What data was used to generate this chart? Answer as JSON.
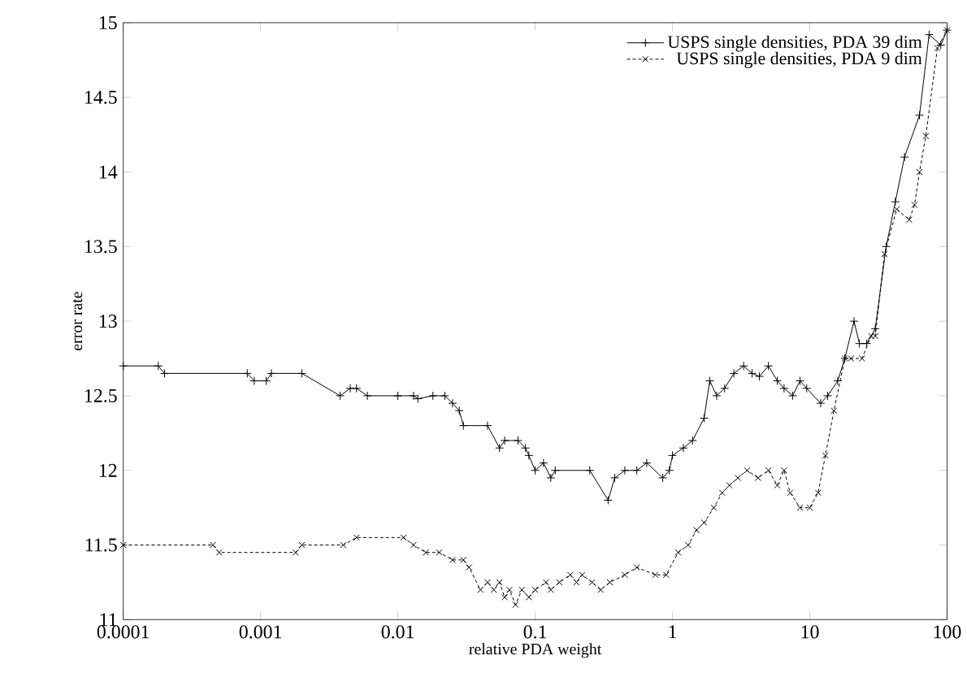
{
  "chart_data": {
    "type": "line",
    "xlabel": "relative PDA weight",
    "ylabel": "error rate",
    "log": "x",
    "xlim": [
      0.0001,
      100
    ],
    "xticks": [
      {
        "value": 0.0001,
        "label": "0.0001"
      },
      {
        "value": 0.001,
        "label": "0.001"
      },
      {
        "value": 0.01,
        "label": "0.01"
      },
      {
        "value": 0.1,
        "label": "0.1"
      },
      {
        "value": 1,
        "label": "1"
      },
      {
        "value": 10,
        "label": "10"
      },
      {
        "value": 100,
        "label": "100"
      }
    ],
    "ylim": [
      11,
      15
    ],
    "yticks": [
      11,
      11.5,
      12,
      12.5,
      13,
      13.5,
      14,
      14.5,
      15
    ],
    "grid": false,
    "legend": "top right",
    "series": [
      {
        "name": "USPS single densities, PDA 39 dim",
        "color": "#000000",
        "marker": "plus",
        "line_style": "solid",
        "x": [
          0.0001,
          0.00018,
          0.0002,
          0.0008,
          0.0009,
          0.0011,
          0.0012,
          0.002,
          0.0038,
          0.0045,
          0.005,
          0.006,
          0.01,
          0.013,
          0.014,
          0.018,
          0.022,
          0.025,
          0.028,
          0.03,
          0.045,
          0.055,
          0.06,
          0.075,
          0.085,
          0.09,
          0.1,
          0.115,
          0.13,
          0.14,
          0.25,
          0.34,
          0.38,
          0.45,
          0.55,
          0.65,
          0.85,
          0.95,
          1.0,
          1.2,
          1.4,
          1.7,
          1.87,
          2.1,
          2.4,
          2.8,
          3.3,
          3.8,
          4.3,
          5,
          5.8,
          6.5,
          7.5,
          8.5,
          9.5,
          12,
          13.5,
          16,
          18,
          21,
          23,
          26,
          30,
          36,
          42,
          49,
          63,
          74,
          90,
          100
        ],
        "values": [
          12.7,
          12.7,
          12.65,
          12.65,
          12.6,
          12.6,
          12.65,
          12.65,
          12.5,
          12.55,
          12.55,
          12.5,
          12.5,
          12.5,
          12.48,
          12.5,
          12.5,
          12.45,
          12.4,
          12.3,
          12.3,
          12.15,
          12.2,
          12.2,
          12.15,
          12.1,
          12.0,
          12.05,
          11.95,
          12.0,
          12.0,
          11.8,
          11.95,
          12.0,
          12.0,
          12.05,
          11.95,
          12.0,
          12.1,
          12.15,
          12.2,
          12.35,
          12.6,
          12.5,
          12.55,
          12.65,
          12.7,
          12.65,
          12.63,
          12.7,
          12.6,
          12.55,
          12.5,
          12.6,
          12.55,
          12.45,
          12.5,
          12.6,
          12.75,
          13.0,
          12.85,
          12.85,
          12.95,
          13.5,
          13.8,
          14.1,
          14.38,
          14.92,
          14.85,
          14.95
        ]
      },
      {
        "name": "USPS single densities, PDA 9 dim",
        "color": "#000000",
        "marker": "cross",
        "line_style": "dashed",
        "x": [
          0.0001,
          0.00045,
          0.0005,
          0.0018,
          0.002,
          0.004,
          0.005,
          0.011,
          0.013,
          0.016,
          0.02,
          0.025,
          0.03,
          0.033,
          0.04,
          0.045,
          0.05,
          0.055,
          0.06,
          0.065,
          0.072,
          0.08,
          0.09,
          0.1,
          0.12,
          0.13,
          0.15,
          0.18,
          0.2,
          0.22,
          0.26,
          0.3,
          0.35,
          0.45,
          0.55,
          0.75,
          0.9,
          1.1,
          1.3,
          1.5,
          1.7,
          2.0,
          2.3,
          2.6,
          3.0,
          3.5,
          4.2,
          5,
          5.8,
          6.5,
          7.2,
          8.5,
          10,
          11.5,
          13,
          15,
          18,
          20,
          24,
          28,
          30,
          35,
          43,
          53,
          58,
          63,
          70,
          85,
          100
        ],
        "values": [
          11.5,
          11.5,
          11.45,
          11.45,
          11.5,
          11.5,
          11.55,
          11.55,
          11.5,
          11.45,
          11.45,
          11.4,
          11.4,
          11.35,
          11.2,
          11.25,
          11.2,
          11.25,
          11.15,
          11.2,
          11.1,
          11.2,
          11.15,
          11.2,
          11.25,
          11.2,
          11.25,
          11.3,
          11.25,
          11.3,
          11.25,
          11.2,
          11.25,
          11.3,
          11.35,
          11.3,
          11.3,
          11.45,
          11.5,
          11.6,
          11.65,
          11.75,
          11.85,
          11.9,
          11.95,
          12.0,
          11.95,
          12.0,
          11.9,
          12.0,
          11.85,
          11.75,
          11.75,
          11.85,
          12.1,
          12.4,
          12.75,
          12.75,
          12.75,
          12.9,
          12.9,
          13.45,
          13.75,
          13.68,
          13.78,
          14.0,
          14.24,
          14.83,
          14.95
        ]
      }
    ]
  }
}
